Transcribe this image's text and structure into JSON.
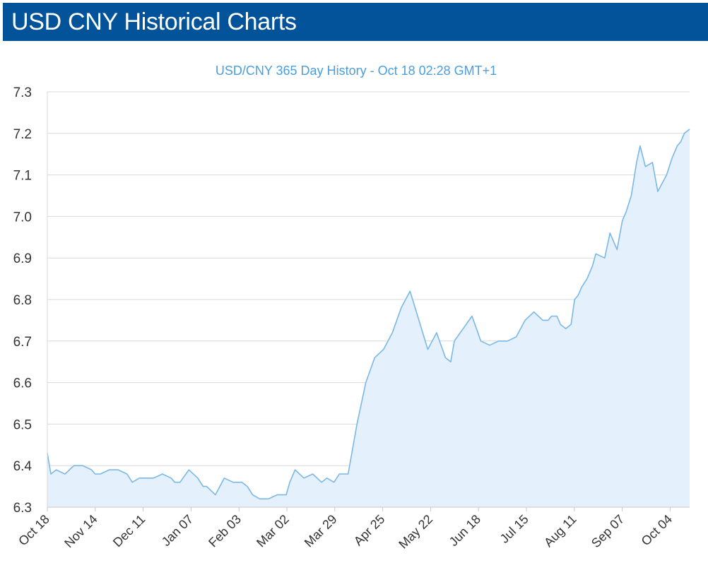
{
  "page": {
    "title": "USD CNY Historical Charts"
  },
  "colors": {
    "header_bg": "#02539a",
    "header_text": "#ffffff",
    "series_line": "#7ab8e6",
    "series_fill": "#e4f0fb",
    "chart_title": "#4a9ede",
    "grid": "#d9d9d9",
    "axis_text": "#333333"
  },
  "chart_data": {
    "type": "area",
    "title": "USD/CNY 365 Day History - Oct 18 02:28 GMT+1",
    "xlabel": "",
    "ylabel": "",
    "ylim": [
      6.3,
      7.3
    ],
    "yticks": [
      "6.3",
      "6.4",
      "6.5",
      "6.6",
      "6.7",
      "6.8",
      "6.9",
      "7.0",
      "7.1",
      "7.2",
      "7.3"
    ],
    "xticks": [
      "Oct 18",
      "Nov 14",
      "Dec 11",
      "Jan 07",
      "Feb 03",
      "Mar 02",
      "Mar 29",
      "Apr 25",
      "May 22",
      "Jun 18",
      "Jul 15",
      "Aug 11",
      "Sep 07",
      "Oct 04"
    ],
    "grid": true,
    "legend": "none",
    "series": [
      {
        "x": [
          0,
          2,
          5,
          10,
          15,
          20,
          25,
          27,
          30,
          35,
          40,
          45,
          48,
          52,
          55,
          60,
          65,
          70,
          72,
          75,
          80,
          85,
          88,
          90,
          95,
          100,
          105,
          110,
          113,
          116,
          120,
          125,
          130,
          135,
          137,
          140,
          145,
          150,
          155,
          158,
          162,
          165,
          170,
          175,
          180,
          185,
          190,
          195,
          200,
          205,
          210,
          215,
          220,
          225,
          228,
          230,
          235,
          240,
          245,
          250,
          255,
          260,
          265,
          270,
          275,
          280,
          283,
          285,
          288,
          290,
          293,
          296,
          298,
          300,
          302,
          305,
          308,
          310,
          315,
          318,
          320,
          322,
          325,
          327,
          330,
          333,
          335,
          338,
          342,
          345,
          350,
          353,
          356,
          358,
          360,
          363
        ],
        "values": [
          6.43,
          6.38,
          6.39,
          6.38,
          6.4,
          6.4,
          6.39,
          6.38,
          6.38,
          6.39,
          6.39,
          6.38,
          6.36,
          6.37,
          6.37,
          6.37,
          6.38,
          6.37,
          6.36,
          6.36,
          6.39,
          6.37,
          6.35,
          6.35,
          6.33,
          6.37,
          6.36,
          6.36,
          6.35,
          6.33,
          6.32,
          6.32,
          6.33,
          6.33,
          6.36,
          6.39,
          6.37,
          6.38,
          6.36,
          6.37,
          6.36,
          6.38,
          6.38,
          6.5,
          6.6,
          6.66,
          6.68,
          6.72,
          6.78,
          6.82,
          6.75,
          6.68,
          6.72,
          6.66,
          6.65,
          6.7,
          6.73,
          6.76,
          6.7,
          6.69,
          6.7,
          6.7,
          6.71,
          6.75,
          6.77,
          6.75,
          6.75,
          6.76,
          6.76,
          6.74,
          6.73,
          6.74,
          6.8,
          6.81,
          6.83,
          6.85,
          6.88,
          6.91,
          6.9,
          6.96,
          6.94,
          6.92,
          6.99,
          7.01,
          7.05,
          7.13,
          7.17,
          7.12,
          7.13,
          7.06,
          7.1,
          7.14,
          7.17,
          7.18,
          7.2,
          7.21
        ]
      }
    ]
  }
}
